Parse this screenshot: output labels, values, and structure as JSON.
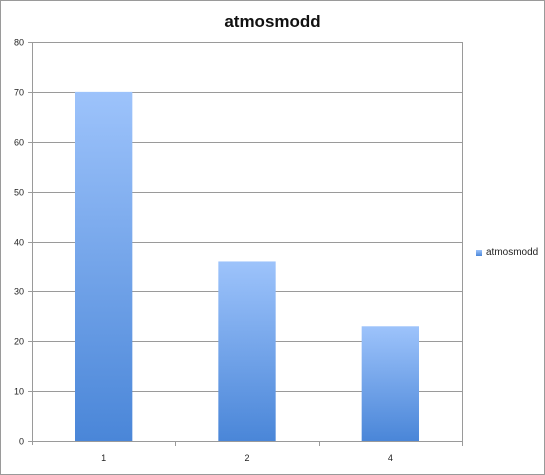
{
  "chart_data": {
    "type": "bar",
    "title": "atmosmodd",
    "xlabel": "",
    "ylabel": "",
    "categories": [
      "1",
      "2",
      "4"
    ],
    "series": [
      {
        "name": "atmosmodd",
        "values": [
          70,
          36,
          23
        ]
      }
    ],
    "ylim": [
      0,
      80
    ],
    "yticks": [
      "0",
      "10",
      "20",
      "30",
      "40",
      "50",
      "60",
      "70",
      "80"
    ],
    "grid": true,
    "legend_position": "right",
    "colors": {
      "bar_top": "#9dc3fb",
      "bar_bottom": "#4a86d8",
      "grid": "#9a9a9a"
    }
  }
}
